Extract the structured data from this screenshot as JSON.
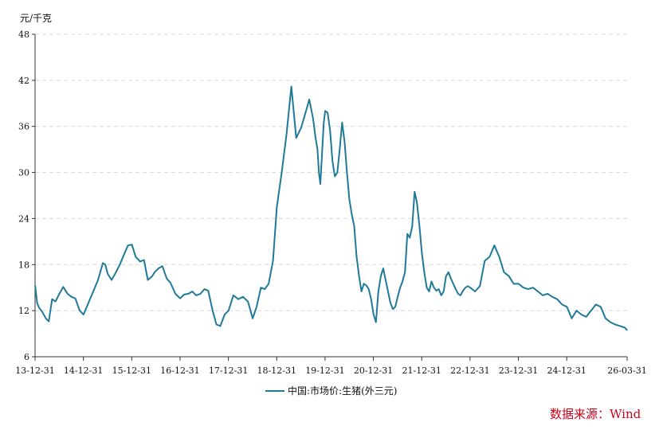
{
  "chart_data": {
    "type": "line",
    "unit_label": "元/千克",
    "ylim": [
      6,
      48
    ],
    "yticks": [
      6,
      12,
      18,
      24,
      30,
      36,
      42,
      48
    ],
    "x_tick_labels": [
      "13-12-31",
      "14-12-31",
      "15-12-31",
      "16-12-31",
      "17-12-31",
      "18-12-31",
      "19-12-31",
      "20-12-31",
      "21-12-31",
      "22-12-31",
      "23-12-31",
      "24-12-31",
      "26-03-31"
    ],
    "x_tick_dates": [
      2013.997,
      2014.997,
      2015.997,
      2016.997,
      2017.997,
      2018.997,
      2019.997,
      2020.997,
      2021.997,
      2022.997,
      2023.997,
      2024.997,
      2026.247
    ],
    "xlim": [
      2013.997,
      2026.247
    ],
    "grid": "horizontal dashed",
    "legend_position": "bottom",
    "series": [
      {
        "name": "中国:市场价:生猪(外三元)",
        "color": "#1f7a99",
        "x": [
          2014.0,
          2014.04,
          2014.08,
          2014.15,
          2014.22,
          2014.28,
          2014.35,
          2014.42,
          2014.5,
          2014.58,
          2014.67,
          2014.75,
          2014.83,
          2014.92,
          2015.0,
          2015.1,
          2015.2,
          2015.3,
          2015.4,
          2015.45,
          2015.5,
          2015.58,
          2015.67,
          2015.75,
          2015.83,
          2015.92,
          2016.0,
          2016.08,
          2016.17,
          2016.25,
          2016.33,
          2016.42,
          2016.47,
          2016.55,
          2016.63,
          2016.72,
          2016.8,
          2016.9,
          2017.0,
          2017.08,
          2017.17,
          2017.25,
          2017.33,
          2017.42,
          2017.5,
          2017.58,
          2017.67,
          2017.75,
          2017.83,
          2017.92,
          2018.0,
          2018.1,
          2018.2,
          2018.3,
          2018.4,
          2018.5,
          2018.58,
          2018.67,
          2018.75,
          2018.83,
          2018.92,
          2019.0,
          2019.1,
          2019.2,
          2019.3,
          2019.4,
          2019.5,
          2019.58,
          2019.67,
          2019.75,
          2019.8,
          2019.84,
          2019.87,
          2019.9,
          2019.93,
          2019.97,
          2020.0,
          2020.05,
          2020.1,
          2020.15,
          2020.2,
          2020.25,
          2020.3,
          2020.35,
          2020.4,
          2020.45,
          2020.5,
          2020.55,
          2020.6,
          2020.65,
          2020.7,
          2020.75,
          2020.8,
          2020.85,
          2020.9,
          2020.95,
          2021.0,
          2021.05,
          2021.1,
          2021.15,
          2021.2,
          2021.25,
          2021.3,
          2021.35,
          2021.4,
          2021.45,
          2021.5,
          2021.55,
          2021.6,
          2021.65,
          2021.7,
          2021.75,
          2021.8,
          2021.85,
          2021.9,
          2021.95,
          2022.0,
          2022.05,
          2022.1,
          2022.15,
          2022.2,
          2022.25,
          2022.3,
          2022.35,
          2022.4,
          2022.45,
          2022.5,
          2022.55,
          2022.6,
          2022.65,
          2022.7,
          2022.75,
          2022.8,
          2022.85,
          2022.9,
          2022.95,
          2023.0,
          2023.1,
          2023.2,
          2023.3,
          2023.4,
          2023.5,
          2023.6,
          2023.7,
          2023.8,
          2023.9,
          2024.0,
          2024.1,
          2024.2,
          2024.3,
          2024.4,
          2024.5,
          2024.6,
          2024.7,
          2024.8,
          2024.9,
          2025.0,
          2025.1,
          2025.2,
          2025.3,
          2025.4,
          2025.5,
          2025.6,
          2025.7,
          2025.8,
          2025.9,
          2026.0,
          2026.1,
          2026.2,
          2026.24
        ],
        "values": [
          15.2,
          13.0,
          12.4,
          11.8,
          11.0,
          10.6,
          13.5,
          13.2,
          14.2,
          15.1,
          14.2,
          13.8,
          13.6,
          12.0,
          11.5,
          13.0,
          14.5,
          16.0,
          18.2,
          18.0,
          16.8,
          16.0,
          17.0,
          18.0,
          19.2,
          20.5,
          20.6,
          19.0,
          18.4,
          18.6,
          16.0,
          16.5,
          17.0,
          17.5,
          17.8,
          16.2,
          15.6,
          14.2,
          13.6,
          14.1,
          14.2,
          14.5,
          14.0,
          14.2,
          14.8,
          14.6,
          12.0,
          10.2,
          10.0,
          11.5,
          12.0,
          14.0,
          13.5,
          13.8,
          13.2,
          11.0,
          12.5,
          15.0,
          14.8,
          15.5,
          18.5,
          25.5,
          30.0,
          35.0,
          41.2,
          34.5,
          35.8,
          37.5,
          39.5,
          37.0,
          34.5,
          33.0,
          30.0,
          28.5,
          32.0,
          36.5,
          38.0,
          37.8,
          35.5,
          31.5,
          29.5,
          30.0,
          33.0,
          36.5,
          34.0,
          30.0,
          26.5,
          24.5,
          23.0,
          19.0,
          16.5,
          14.5,
          15.5,
          15.3,
          14.8,
          13.5,
          11.5,
          10.5,
          14.5,
          16.5,
          17.5,
          16.0,
          14.5,
          13.0,
          12.2,
          12.5,
          13.8,
          15.0,
          15.8,
          17.0,
          22.0,
          21.5,
          23.0,
          27.5,
          26.0,
          23.0,
          19.5,
          17.0,
          15.0,
          14.5,
          15.8,
          15.0,
          14.6,
          14.8,
          14.0,
          14.5,
          16.5,
          17.0,
          16.2,
          15.5,
          14.8,
          14.2,
          14.0,
          14.6,
          15.0,
          15.2,
          15.0,
          14.5,
          15.2,
          18.5,
          19.0,
          20.5,
          19.0,
          17.0,
          16.5,
          15.5,
          15.5,
          15.0,
          14.8,
          15.0,
          14.5,
          14.0,
          14.2,
          13.8,
          13.5,
          12.8,
          12.5,
          11.0,
          12.0,
          11.5,
          11.2,
          12.0,
          12.8,
          12.5,
          11.0,
          10.5,
          10.2,
          10.0,
          9.8,
          9.5
        ]
      }
    ]
  },
  "legend": {
    "label": "中国:市场价:生猪(外三元)"
  },
  "source": "数据来源：Wind"
}
